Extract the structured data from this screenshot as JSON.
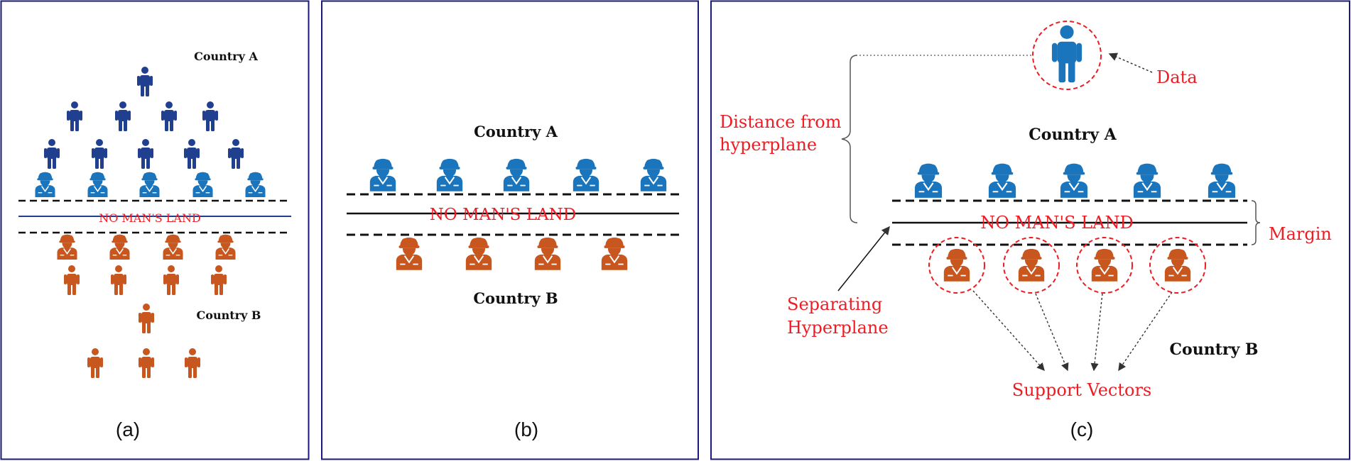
{
  "colors": {
    "country_a": "#1b75bc",
    "country_a_dark": "#213f8f",
    "country_b": "#c8561f",
    "annotation": "#ee1c24",
    "frame": "#1a1a7a",
    "line": "#111111"
  },
  "icons": {
    "standing_person": "person-icon",
    "soldier": "soldier-icon",
    "highlight": "dashed-circle-icon"
  },
  "panel_a": {
    "caption": "(a)",
    "country_a": "Country A",
    "country_b": "Country B",
    "band_label": "NO MAN'S LAND"
  },
  "panel_b": {
    "caption": "(b)",
    "country_a": "Country A",
    "country_b": "Country B",
    "band_label": "NO MAN'S LAND"
  },
  "panel_c": {
    "caption": "(c)",
    "country_a": "Country A",
    "country_b": "Country B",
    "band_label": "NO MAN'S LAND",
    "data_label": "Data",
    "distance_label_line1": "Distance from",
    "distance_label_line2": "hyperplane",
    "margin_label": "Margin",
    "separating_line1": "Separating",
    "separating_line2": "Hyperplane",
    "support_vectors_label": "Support Vectors"
  }
}
